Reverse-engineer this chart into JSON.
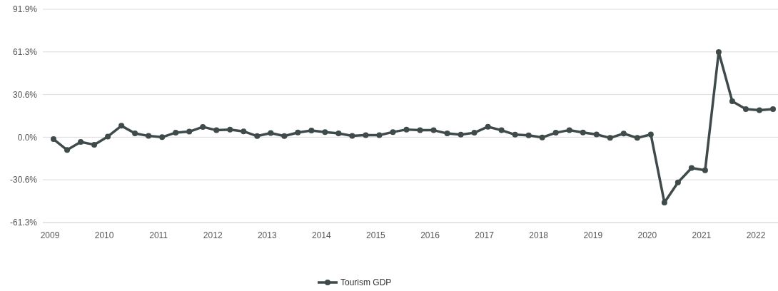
{
  "chart_data": {
    "type": "line",
    "categories": [
      "2009",
      null,
      null,
      null,
      "2010",
      null,
      null,
      null,
      "2011",
      null,
      null,
      null,
      "2012",
      null,
      null,
      null,
      "2013",
      null,
      null,
      null,
      "2014",
      null,
      null,
      null,
      "2015",
      null,
      null,
      null,
      "2016",
      null,
      null,
      null,
      "2017",
      null,
      null,
      null,
      "2018",
      null,
      null,
      null,
      "2019",
      null,
      null,
      null,
      "2020",
      null,
      null,
      null,
      "2021",
      null,
      null,
      null,
      "2022",
      null
    ],
    "series": [
      {
        "name": "Tourism GDP",
        "color": "#3f4b4a",
        "values": [
          -1.4,
          -9.2,
          -3.4,
          -5.4,
          0.5,
          8.2,
          2.7,
          0.9,
          0,
          3.3,
          4.0,
          7.4,
          5.0,
          5.4,
          4.2,
          0.8,
          3.0,
          0.8,
          3.4,
          4.8,
          3.6,
          2.7,
          1.0,
          1.5,
          1.5,
          3.7,
          5.5,
          5.0,
          5.0,
          2.7,
          1.9,
          3.2,
          7.5,
          5.0,
          1.8,
          1.3,
          -0.2,
          3.2,
          5.1,
          3.4,
          2.0,
          -0.5,
          2.6,
          -0.5,
          2.0,
          -46.9,
          -32.5,
          -22.1,
          -23.8,
          61.2,
          25.8,
          20.2,
          19.4,
          20.2
        ]
      }
    ],
    "ylim": [
      -61.3,
      91.9
    ],
    "yticks": [
      {
        "value": -61.3,
        "label": "-61.3%"
      },
      {
        "value": -30.6,
        "label": "-30.6%"
      },
      {
        "value": 0,
        "label": "0.0%"
      },
      {
        "value": 30.6,
        "label": "30.6%"
      },
      {
        "value": 61.3,
        "label": "61.3%"
      },
      {
        "value": 91.9,
        "label": "91.9%"
      }
    ],
    "grid": "y",
    "legend": "bottom",
    "marker": "circle",
    "line_style": "solid"
  }
}
